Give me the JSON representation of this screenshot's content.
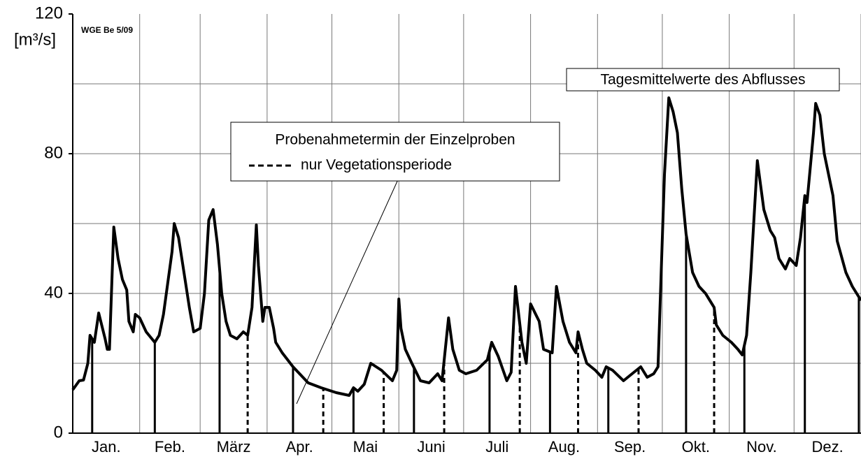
{
  "chart_data": {
    "type": "line",
    "y_label": "[m³/s]",
    "stamp": "WGE Be 5/09",
    "series_label": "Tagesmittelwerte des Abflusses",
    "sample_label": "Probenahmetermin der Einzelproben",
    "dashed_label": "nur Vegetationsperiode",
    "categories": [
      "Jan.",
      "Feb.",
      "März",
      "Apr.",
      "Mai",
      "Juni",
      "Juli",
      "Aug.",
      "Sep.",
      "Okt.",
      "Nov.",
      "Dez."
    ],
    "month_bounds": [
      0,
      31,
      59,
      90,
      120,
      151,
      181,
      212,
      243,
      273,
      304,
      334,
      365
    ],
    "xlim": [
      0,
      365
    ],
    "ylim": [
      0,
      120
    ],
    "yticks": [
      0,
      40,
      80,
      120
    ],
    "ygrid": [
      20,
      40,
      60,
      80,
      100
    ],
    "color": "#000000",
    "x": [
      0,
      3,
      5,
      7,
      8,
      10,
      12,
      15,
      16,
      17,
      19,
      21,
      23,
      25,
      26,
      28,
      29,
      31,
      34,
      38,
      40,
      42,
      46,
      47,
      49,
      51,
      54,
      56,
      59,
      61,
      63,
      65,
      67,
      69,
      71,
      73,
      76,
      79,
      81,
      83,
      85,
      86,
      88,
      89,
      91,
      93,
      94,
      97,
      102,
      109,
      115,
      122,
      128,
      130,
      132,
      135,
      138,
      143,
      148,
      150,
      151,
      152,
      154,
      157,
      161,
      165,
      169,
      171,
      174,
      176,
      179,
      182,
      187,
      192,
      194,
      197,
      201,
      203,
      205,
      208,
      210,
      212,
      216,
      218,
      222,
      224,
      227,
      230,
      233,
      234,
      236,
      238,
      242,
      245,
      247,
      250,
      255,
      259,
      263,
      266,
      269,
      271,
      274,
      276,
      278,
      280,
      282,
      284,
      287,
      290,
      293,
      297,
      298,
      301,
      305,
      308,
      310,
      312,
      314,
      317,
      320,
      323,
      325,
      327,
      330,
      332,
      335,
      337,
      339,
      340,
      343,
      344,
      346,
      348,
      352,
      354,
      358,
      361,
      365
    ],
    "values": [
      12.4,
      15,
      15.2,
      20,
      28,
      26,
      34.4,
      27,
      24,
      24,
      59,
      50,
      44,
      41,
      32,
      29,
      34,
      33,
      29,
      26,
      28,
      34,
      52,
      60,
      56,
      48,
      36,
      29,
      30,
      40,
      61,
      64,
      54,
      40,
      32,
      28,
      27,
      29,
      28,
      36,
      59.6,
      48,
      32,
      36,
      36,
      30,
      26,
      23,
      19,
      14.4,
      13,
      11.6,
      10.8,
      13,
      12,
      14,
      20,
      18,
      15,
      18,
      38.4,
      30,
      24,
      20,
      15,
      14.4,
      17,
      15,
      33,
      24,
      18,
      17,
      18,
      21,
      26,
      22,
      15,
      17.4,
      42,
      26,
      20,
      37,
      32,
      24,
      23,
      42,
      32,
      26,
      23,
      29,
      24,
      20,
      18,
      16,
      19,
      18,
      15,
      17,
      19,
      16,
      17,
      19,
      74,
      96,
      92,
      86,
      70,
      57,
      46,
      42,
      40,
      36,
      31,
      28,
      26,
      24,
      22.4,
      28,
      46,
      78,
      64,
      58,
      56,
      50,
      47,
      50,
      48,
      56,
      68,
      66,
      86,
      94.4,
      91,
      80,
      68,
      55,
      46,
      42,
      38
    ],
    "samples_solid": [
      9,
      38,
      68,
      102,
      130,
      158,
      193,
      221,
      248,
      284,
      311,
      339,
      364
    ],
    "samples_dashed": [
      81,
      116,
      144,
      172,
      207,
      234,
      262,
      297
    ]
  }
}
